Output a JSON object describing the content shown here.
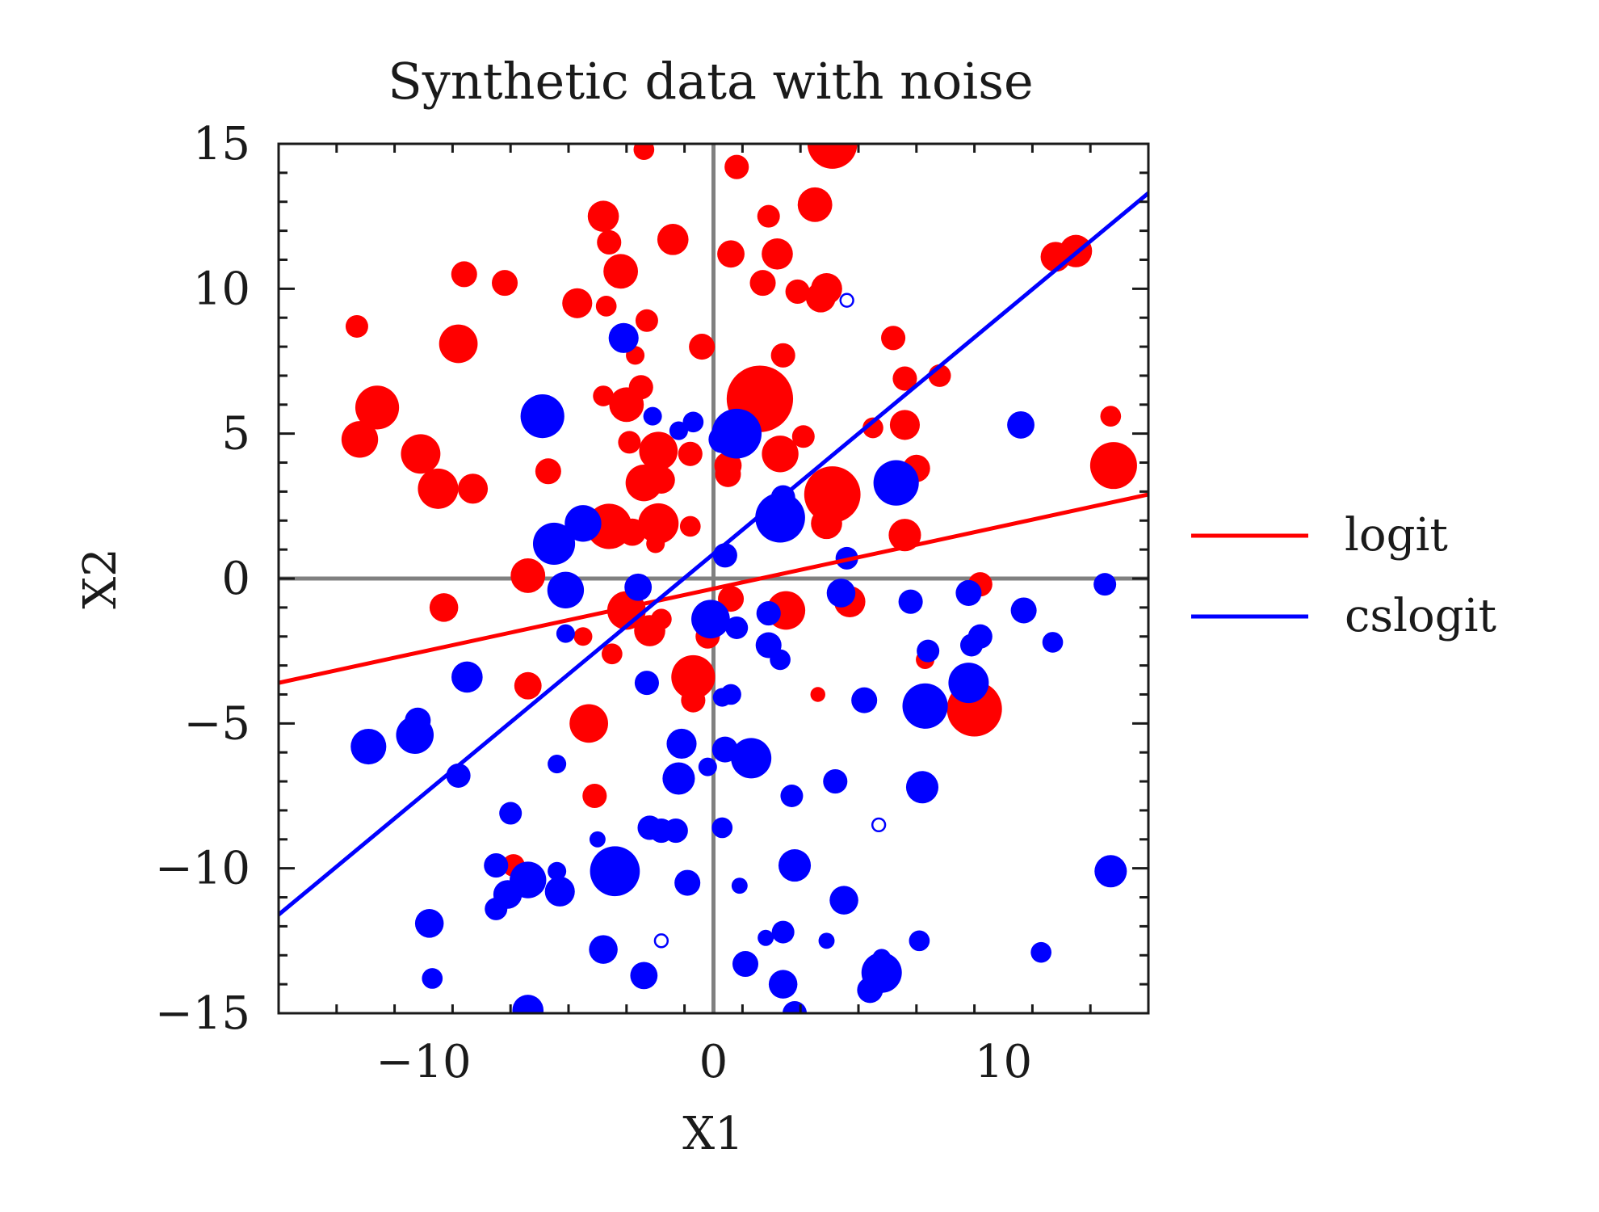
{
  "chart_data": {
    "type": "scatter",
    "title": "Synthetic data with noise",
    "xlabel": "X1",
    "ylabel": "X2",
    "xlim": [
      -15,
      15
    ],
    "ylim": [
      -15,
      15
    ],
    "xticks": [
      -10,
      0,
      10
    ],
    "yticks": [
      -15,
      -10,
      -5,
      0,
      5,
      10,
      15
    ],
    "xtick_labels": [
      "−10",
      "0",
      "10"
    ],
    "ytick_labels": [
      "−15",
      "−10",
      "−5",
      "0",
      "5",
      "10",
      "15"
    ],
    "grid": false,
    "reference_lines": {
      "x": 0,
      "y": 0,
      "color": "#808080"
    },
    "legend_position": "right",
    "colors": {
      "class_red": "#ff0000",
      "class_blue": "#0000ff",
      "axis_ref": "#808080"
    },
    "lines": [
      {
        "name": "logit",
        "color": "#ff0000",
        "x": [
          -15,
          15
        ],
        "y": [
          -3.6,
          2.9
        ]
      },
      {
        "name": "cslogit",
        "color": "#0000ff",
        "x": [
          -15,
          15
        ],
        "y": [
          -11.6,
          13.3
        ]
      }
    ],
    "series": [
      {
        "color": "#ff0000",
        "points": [
          {
            "x": 4.1,
            "y": 15.0,
            "w": 1.6
          },
          {
            "x": -2.4,
            "y": 14.8,
            "w": 0.2
          },
          {
            "x": 0.8,
            "y": 14.2,
            "w": 0.3
          },
          {
            "x": 3.5,
            "y": 12.9,
            "w": 0.7
          },
          {
            "x": -3.8,
            "y": 12.5,
            "w": 0.55
          },
          {
            "x": 1.9,
            "y": 12.5,
            "w": 0.25
          },
          {
            "x": -1.4,
            "y": 11.7,
            "w": 0.55
          },
          {
            "x": -3.6,
            "y": 11.6,
            "w": 0.3
          },
          {
            "x": 0.6,
            "y": 11.2,
            "w": 0.4
          },
          {
            "x": 2.2,
            "y": 11.2,
            "w": 0.55
          },
          {
            "x": 11.8,
            "y": 11.1,
            "w": 0.5
          },
          {
            "x": 12.5,
            "y": 11.3,
            "w": 0.6
          },
          {
            "x": -3.2,
            "y": 10.6,
            "w": 0.7
          },
          {
            "x": -8.6,
            "y": 10.5,
            "w": 0.35
          },
          {
            "x": -7.2,
            "y": 10.2,
            "w": 0.35
          },
          {
            "x": 1.7,
            "y": 10.2,
            "w": 0.35
          },
          {
            "x": 3.9,
            "y": 10.0,
            "w": 0.55
          },
          {
            "x": 2.9,
            "y": 9.9,
            "w": 0.3
          },
          {
            "x": 3.7,
            "y": 9.7,
            "w": 0.5
          },
          {
            "x": -4.7,
            "y": 9.5,
            "w": 0.5
          },
          {
            "x": -3.7,
            "y": 9.4,
            "w": 0.2
          },
          {
            "x": -2.3,
            "y": 8.9,
            "w": 0.25
          },
          {
            "x": -12.3,
            "y": 8.7,
            "w": 0.25
          },
          {
            "x": -8.8,
            "y": 8.1,
            "w": 0.9
          },
          {
            "x": 6.2,
            "y": 8.3,
            "w": 0.3
          },
          {
            "x": -0.4,
            "y": 8.0,
            "w": 0.35
          },
          {
            "x": -2.7,
            "y": 7.7,
            "w": 0.15
          },
          {
            "x": 2.4,
            "y": 7.7,
            "w": 0.3
          },
          {
            "x": 1.6,
            "y": 6.2,
            "w": 3.0
          },
          {
            "x": 6.6,
            "y": 6.9,
            "w": 0.3
          },
          {
            "x": 7.8,
            "y": 7.0,
            "w": 0.25
          },
          {
            "x": -11.6,
            "y": 5.9,
            "w": 1.2
          },
          {
            "x": -2.5,
            "y": 6.6,
            "w": 0.3
          },
          {
            "x": -3.8,
            "y": 6.3,
            "w": 0.2
          },
          {
            "x": -3.0,
            "y": 6.0,
            "w": 0.7
          },
          {
            "x": 6.6,
            "y": 5.3,
            "w": 0.5
          },
          {
            "x": 13.7,
            "y": 5.6,
            "w": 0.2
          },
          {
            "x": -12.2,
            "y": 4.8,
            "w": 0.8
          },
          {
            "x": -10.1,
            "y": 4.3,
            "w": 0.95
          },
          {
            "x": -1.9,
            "y": 4.4,
            "w": 0.9
          },
          {
            "x": -2.9,
            "y": 4.7,
            "w": 0.25
          },
          {
            "x": 3.1,
            "y": 4.9,
            "w": 0.25
          },
          {
            "x": 5.5,
            "y": 5.2,
            "w": 0.2
          },
          {
            "x": 2.3,
            "y": 4.3,
            "w": 0.8
          },
          {
            "x": 0.5,
            "y": 3.9,
            "w": 0.4
          },
          {
            "x": 0.5,
            "y": 3.6,
            "w": 0.35
          },
          {
            "x": -0.8,
            "y": 4.3,
            "w": 0.3
          },
          {
            "x": -9.5,
            "y": 3.1,
            "w": 1.0
          },
          {
            "x": -8.3,
            "y": 3.1,
            "w": 0.5
          },
          {
            "x": -2.4,
            "y": 3.3,
            "w": 0.8
          },
          {
            "x": -1.8,
            "y": 3.4,
            "w": 0.4
          },
          {
            "x": 4.1,
            "y": 2.9,
            "w": 2.1
          },
          {
            "x": 13.8,
            "y": 3.9,
            "w": 1.4
          },
          {
            "x": 7.0,
            "y": 3.8,
            "w": 0.4
          },
          {
            "x": -5.7,
            "y": 3.7,
            "w": 0.35
          },
          {
            "x": -3.6,
            "y": 1.8,
            "w": 1.3
          },
          {
            "x": -1.9,
            "y": 1.9,
            "w": 1.0
          },
          {
            "x": -2.8,
            "y": 1.6,
            "w": 0.4
          },
          {
            "x": -0.8,
            "y": 1.8,
            "w": 0.2
          },
          {
            "x": 2.5,
            "y": 1.9,
            "w": 0.35
          },
          {
            "x": 3.9,
            "y": 1.9,
            "w": 0.55
          },
          {
            "x": 6.6,
            "y": 1.5,
            "w": 0.6
          },
          {
            "x": -6.4,
            "y": 0.1,
            "w": 0.7
          },
          {
            "x": -2.0,
            "y": 1.2,
            "w": 0.15
          },
          {
            "x": 9.2,
            "y": -0.2,
            "w": 0.3
          },
          {
            "x": -9.3,
            "y": -1.0,
            "w": 0.45
          },
          {
            "x": 0.6,
            "y": -0.7,
            "w": 0.35
          },
          {
            "x": -3.0,
            "y": -1.1,
            "w": 0.9
          },
          {
            "x": 2.5,
            "y": -1.1,
            "w": 0.9
          },
          {
            "x": 4.7,
            "y": -0.8,
            "w": 0.55
          },
          {
            "x": -2.2,
            "y": -1.8,
            "w": 0.55
          },
          {
            "x": -1.8,
            "y": -1.4,
            "w": 0.2
          },
          {
            "x": -4.5,
            "y": -2.0,
            "w": 0.15
          },
          {
            "x": -3.5,
            "y": -2.6,
            "w": 0.2
          },
          {
            "x": -0.2,
            "y": -2.0,
            "w": 0.3
          },
          {
            "x": 7.3,
            "y": -2.8,
            "w": 0.15
          },
          {
            "x": -0.7,
            "y": -3.4,
            "w": 1.2
          },
          {
            "x": -6.4,
            "y": -3.7,
            "w": 0.4
          },
          {
            "x": -0.7,
            "y": -4.2,
            "w": 0.3
          },
          {
            "x": 3.6,
            "y": -4.0,
            "w": 0.08
          },
          {
            "x": 9.0,
            "y": -4.5,
            "w": 2.0
          },
          {
            "x": -4.3,
            "y": -5.0,
            "w": 0.9
          },
          {
            "x": -4.1,
            "y": -7.5,
            "w": 0.3
          },
          {
            "x": -6.9,
            "y": -9.9,
            "w": 0.25
          }
        ]
      },
      {
        "color": "#0000ff",
        "points": [
          {
            "x": 4.6,
            "y": 9.6,
            "w": 0.05
          },
          {
            "x": -3.1,
            "y": 8.3,
            "w": 0.5
          },
          {
            "x": -5.9,
            "y": 5.6,
            "w": 1.2
          },
          {
            "x": -2.1,
            "y": 5.6,
            "w": 0.15
          },
          {
            "x": -1.2,
            "y": 5.1,
            "w": 0.15
          },
          {
            "x": 0.8,
            "y": 5.0,
            "w": 1.6
          },
          {
            "x": 10.6,
            "y": 5.3,
            "w": 0.4
          },
          {
            "x": -0.7,
            "y": 5.4,
            "w": 0.2
          },
          {
            "x": 0.3,
            "y": 4.8,
            "w": 0.4
          },
          {
            "x": 6.3,
            "y": 3.3,
            "w": 1.3
          },
          {
            "x": 2.3,
            "y": 2.1,
            "w": 1.6
          },
          {
            "x": -4.5,
            "y": 1.9,
            "w": 0.8
          },
          {
            "x": -5.5,
            "y": 1.2,
            "w": 1.1
          },
          {
            "x": 2.4,
            "y": 2.8,
            "w": 0.3
          },
          {
            "x": 0.4,
            "y": 0.8,
            "w": 0.3
          },
          {
            "x": 4.6,
            "y": 0.7,
            "w": 0.25
          },
          {
            "x": -5.1,
            "y": -0.4,
            "w": 0.8
          },
          {
            "x": -2.6,
            "y": -0.3,
            "w": 0.4
          },
          {
            "x": 4.4,
            "y": -0.5,
            "w": 0.45
          },
          {
            "x": 6.8,
            "y": -0.8,
            "w": 0.3
          },
          {
            "x": 8.8,
            "y": -0.5,
            "w": 0.35
          },
          {
            "x": 13.5,
            "y": -0.2,
            "w": 0.25
          },
          {
            "x": -0.1,
            "y": -1.4,
            "w": 0.9
          },
          {
            "x": 1.9,
            "y": -1.2,
            "w": 0.3
          },
          {
            "x": 10.7,
            "y": -1.1,
            "w": 0.35
          },
          {
            "x": -5.1,
            "y": -1.9,
            "w": 0.15
          },
          {
            "x": 0.8,
            "y": -1.7,
            "w": 0.25
          },
          {
            "x": 1.9,
            "y": -2.3,
            "w": 0.35
          },
          {
            "x": 9.2,
            "y": -2.0,
            "w": 0.3
          },
          {
            "x": 8.9,
            "y": -2.3,
            "w": 0.25
          },
          {
            "x": 7.4,
            "y": -2.5,
            "w": 0.25
          },
          {
            "x": 2.3,
            "y": -2.8,
            "w": 0.2
          },
          {
            "x": 11.7,
            "y": -2.2,
            "w": 0.2
          },
          {
            "x": -8.5,
            "y": -3.4,
            "w": 0.55
          },
          {
            "x": -2.3,
            "y": -3.6,
            "w": 0.3
          },
          {
            "x": 8.8,
            "y": -3.6,
            "w": 1.0
          },
          {
            "x": 0.3,
            "y": -4.1,
            "w": 0.15
          },
          {
            "x": 0.6,
            "y": -4.0,
            "w": 0.2
          },
          {
            "x": 5.2,
            "y": -4.2,
            "w": 0.35
          },
          {
            "x": 7.3,
            "y": -4.4,
            "w": 1.3
          },
          {
            "x": -10.2,
            "y": -4.9,
            "w": 0.35
          },
          {
            "x": -10.3,
            "y": -5.4,
            "w": 0.85
          },
          {
            "x": -11.9,
            "y": -5.8,
            "w": 0.75
          },
          {
            "x": -1.1,
            "y": -5.7,
            "w": 0.5
          },
          {
            "x": 0.4,
            "y": -5.9,
            "w": 0.35
          },
          {
            "x": 1.3,
            "y": -6.2,
            "w": 1.0
          },
          {
            "x": -5.4,
            "y": -6.4,
            "w": 0.15
          },
          {
            "x": -0.2,
            "y": -6.5,
            "w": 0.15
          },
          {
            "x": -1.2,
            "y": -6.9,
            "w": 0.6
          },
          {
            "x": -8.8,
            "y": -6.8,
            "w": 0.3
          },
          {
            "x": 4.2,
            "y": -7.0,
            "w": 0.3
          },
          {
            "x": 7.2,
            "y": -7.2,
            "w": 0.6
          },
          {
            "x": 2.7,
            "y": -7.5,
            "w": 0.25
          },
          {
            "x": -7.0,
            "y": -8.1,
            "w": 0.25
          },
          {
            "x": -2.2,
            "y": -8.6,
            "w": 0.3
          },
          {
            "x": -1.8,
            "y": -8.7,
            "w": 0.3
          },
          {
            "x": -1.3,
            "y": -8.7,
            "w": 0.3
          },
          {
            "x": 0.3,
            "y": -8.6,
            "w": 0.2
          },
          {
            "x": 5.7,
            "y": -8.5,
            "w": 0.05
          },
          {
            "x": -4.0,
            "y": -9.0,
            "w": 0.1
          },
          {
            "x": -7.5,
            "y": -9.9,
            "w": 0.3
          },
          {
            "x": -3.4,
            "y": -10.1,
            "w": 1.6
          },
          {
            "x": 2.8,
            "y": -9.9,
            "w": 0.6
          },
          {
            "x": -5.4,
            "y": -10.1,
            "w": 0.15
          },
          {
            "x": 13.7,
            "y": -10.1,
            "w": 0.6
          },
          {
            "x": -6.4,
            "y": -10.4,
            "w": 0.8
          },
          {
            "x": -0.9,
            "y": -10.5,
            "w": 0.35
          },
          {
            "x": 0.9,
            "y": -10.6,
            "w": 0.1
          },
          {
            "x": -5.3,
            "y": -10.8,
            "w": 0.5
          },
          {
            "x": -7.1,
            "y": -10.9,
            "w": 0.45
          },
          {
            "x": -7.5,
            "y": -11.4,
            "w": 0.25
          },
          {
            "x": 4.5,
            "y": -11.1,
            "w": 0.45
          },
          {
            "x": -9.8,
            "y": -11.9,
            "w": 0.45
          },
          {
            "x": 2.4,
            "y": -12.2,
            "w": 0.25
          },
          {
            "x": -1.8,
            "y": -12.5,
            "w": 0.05
          },
          {
            "x": 1.8,
            "y": -12.4,
            "w": 0.1
          },
          {
            "x": 3.9,
            "y": -12.5,
            "w": 0.1
          },
          {
            "x": 7.1,
            "y": -12.5,
            "w": 0.2
          },
          {
            "x": -3.8,
            "y": -12.8,
            "w": 0.45
          },
          {
            "x": 11.3,
            "y": -12.9,
            "w": 0.2
          },
          {
            "x": 1.1,
            "y": -13.3,
            "w": 0.35
          },
          {
            "x": 5.8,
            "y": -13.1,
            "w": 0.15
          },
          {
            "x": -2.4,
            "y": -13.7,
            "w": 0.4
          },
          {
            "x": 5.8,
            "y": -13.6,
            "w": 1.0
          },
          {
            "x": -9.7,
            "y": -13.8,
            "w": 0.2
          },
          {
            "x": 2.4,
            "y": -14.0,
            "w": 0.45
          },
          {
            "x": 5.4,
            "y": -14.2,
            "w": 0.35
          },
          {
            "x": -6.4,
            "y": -14.9,
            "w": 0.55
          },
          {
            "x": 2.8,
            "y": -15.0,
            "w": 0.3
          }
        ]
      }
    ]
  }
}
